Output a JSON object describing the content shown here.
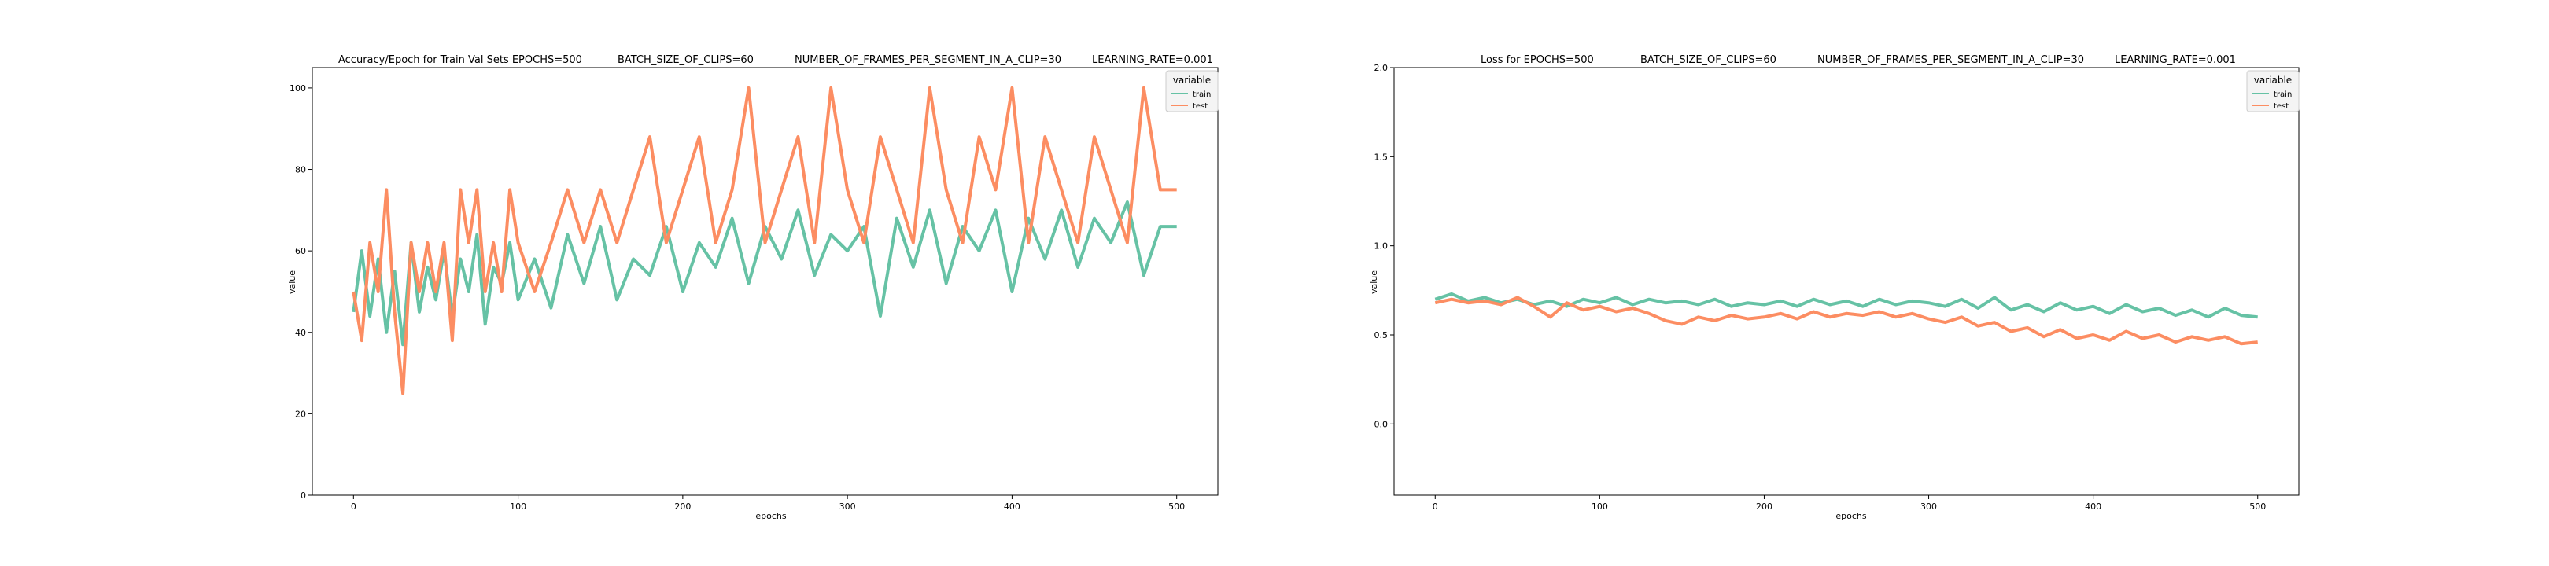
{
  "colors": {
    "train": "#66c2a5",
    "test": "#fc8d62"
  },
  "chart_data": [
    {
      "type": "line",
      "title": "Accuracy/Epoch for Train Val Sets EPOCHS=500",
      "subtitle_items": [
        "BATCH_SIZE_OF_CLIPS=60",
        "NUMBER_OF_FRAMES_PER_SEGMENT_IN_A_CLIP=30",
        "LEARNING_RATE=0.001"
      ],
      "xlabel": "epochs",
      "ylabel": "value",
      "xlim": [
        -25,
        525
      ],
      "ylim": [
        0,
        105
      ],
      "xticks": [
        0,
        100,
        200,
        300,
        400,
        500
      ],
      "yticks": [
        0,
        20,
        40,
        60,
        80,
        100
      ],
      "grid": false,
      "legend": {
        "title": "variable",
        "position": "upper-right",
        "entries": [
          "train",
          "test"
        ]
      },
      "series": [
        {
          "name": "train",
          "x": [
            0,
            5,
            10,
            15,
            20,
            25,
            30,
            35,
            40,
            45,
            50,
            55,
            60,
            65,
            70,
            75,
            80,
            85,
            90,
            95,
            100,
            110,
            120,
            130,
            140,
            150,
            160,
            170,
            180,
            190,
            200,
            210,
            220,
            230,
            240,
            250,
            260,
            270,
            280,
            290,
            300,
            310,
            320,
            330,
            340,
            350,
            360,
            370,
            380,
            390,
            400,
            410,
            420,
            430,
            440,
            450,
            460,
            470,
            480,
            490,
            500
          ],
          "values": [
            45,
            60,
            44,
            58,
            40,
            55,
            37,
            62,
            45,
            56,
            48,
            60,
            44,
            58,
            50,
            64,
            42,
            56,
            52,
            62,
            48,
            58,
            46,
            64,
            52,
            66,
            48,
            58,
            54,
            66,
            50,
            62,
            56,
            68,
            52,
            66,
            58,
            70,
            54,
            64,
            60,
            66,
            44,
            68,
            56,
            70,
            52,
            66,
            60,
            70,
            50,
            68,
            58,
            70,
            56,
            68,
            62,
            72,
            54,
            66,
            66
          ]
        },
        {
          "name": "test",
          "x": [
            0,
            5,
            10,
            15,
            20,
            25,
            30,
            35,
            40,
            45,
            50,
            55,
            60,
            65,
            70,
            75,
            80,
            85,
            90,
            95,
            100,
            110,
            120,
            130,
            140,
            150,
            160,
            170,
            180,
            190,
            200,
            210,
            220,
            230,
            240,
            250,
            260,
            270,
            280,
            290,
            300,
            310,
            320,
            330,
            340,
            350,
            360,
            370,
            380,
            390,
            400,
            410,
            420,
            430,
            440,
            450,
            460,
            470,
            480,
            490,
            500
          ],
          "values": [
            50,
            38,
            62,
            50,
            75,
            45,
            25,
            62,
            50,
            62,
            50,
            62,
            38,
            75,
            62,
            75,
            50,
            62,
            50,
            75,
            62,
            50,
            62,
            75,
            62,
            75,
            62,
            75,
            88,
            62,
            75,
            88,
            62,
            75,
            100,
            62,
            75,
            88,
            62,
            100,
            75,
            62,
            88,
            75,
            62,
            100,
            75,
            62,
            88,
            75,
            100,
            62,
            88,
            75,
            62,
            88,
            75,
            62,
            100,
            75,
            75
          ]
        }
      ]
    },
    {
      "type": "line",
      "title": "Loss for  EPOCHS=500",
      "subtitle_items": [
        "BATCH_SIZE_OF_CLIPS=60",
        "NUMBER_OF_FRAMES_PER_SEGMENT_IN_A_CLIP=30",
        "LEARNING_RATE=0.001"
      ],
      "xlabel": "epochs",
      "ylabel": "value",
      "xlim": [
        -25,
        525
      ],
      "ylim": [
        -0.4,
        2.0
      ],
      "xticks": [
        0,
        100,
        200,
        300,
        400,
        500
      ],
      "yticks": [
        0.0,
        0.5,
        1.0,
        1.5,
        2.0
      ],
      "ytick_labels": [
        "0.0",
        "0.5",
        "1.0",
        "1.5",
        "2.0"
      ],
      "grid": false,
      "legend": {
        "title": "variable",
        "position": "upper-right",
        "entries": [
          "train",
          "test"
        ]
      },
      "series": [
        {
          "name": "train",
          "x": [
            0,
            10,
            20,
            30,
            40,
            50,
            60,
            70,
            80,
            90,
            100,
            110,
            120,
            130,
            140,
            150,
            160,
            170,
            180,
            190,
            200,
            210,
            220,
            230,
            240,
            250,
            260,
            270,
            280,
            290,
            300,
            310,
            320,
            330,
            340,
            350,
            360,
            370,
            380,
            390,
            400,
            410,
            420,
            430,
            440,
            450,
            460,
            470,
            480,
            490,
            500
          ],
          "values": [
            0.7,
            0.73,
            0.69,
            0.71,
            0.68,
            0.7,
            0.67,
            0.69,
            0.66,
            0.7,
            0.68,
            0.71,
            0.67,
            0.7,
            0.68,
            0.69,
            0.67,
            0.7,
            0.66,
            0.68,
            0.67,
            0.69,
            0.66,
            0.7,
            0.67,
            0.69,
            0.66,
            0.7,
            0.67,
            0.69,
            0.68,
            0.66,
            0.7,
            0.65,
            0.71,
            0.64,
            0.67,
            0.63,
            0.68,
            0.64,
            0.66,
            0.62,
            0.67,
            0.63,
            0.65,
            0.61,
            0.64,
            0.6,
            0.65,
            0.61,
            0.6
          ]
        },
        {
          "name": "test",
          "x": [
            0,
            10,
            20,
            30,
            40,
            50,
            60,
            70,
            80,
            90,
            100,
            110,
            120,
            130,
            140,
            150,
            160,
            170,
            180,
            190,
            200,
            210,
            220,
            230,
            240,
            250,
            260,
            270,
            280,
            290,
            300,
            310,
            320,
            330,
            340,
            350,
            360,
            370,
            380,
            390,
            400,
            410,
            420,
            430,
            440,
            450,
            460,
            470,
            480,
            490,
            500
          ],
          "values": [
            0.68,
            0.7,
            0.68,
            0.69,
            0.67,
            0.71,
            0.66,
            0.6,
            0.68,
            0.64,
            0.66,
            0.63,
            0.65,
            0.62,
            0.58,
            0.56,
            0.6,
            0.58,
            0.61,
            0.59,
            0.6,
            0.62,
            0.59,
            0.63,
            0.6,
            0.62,
            0.61,
            0.63,
            0.6,
            0.62,
            0.59,
            0.57,
            0.6,
            0.55,
            0.57,
            0.52,
            0.54,
            0.49,
            0.53,
            0.48,
            0.5,
            0.47,
            0.52,
            0.48,
            0.5,
            0.46,
            0.49,
            0.47,
            0.49,
            0.45,
            0.46
          ]
        }
      ]
    }
  ]
}
